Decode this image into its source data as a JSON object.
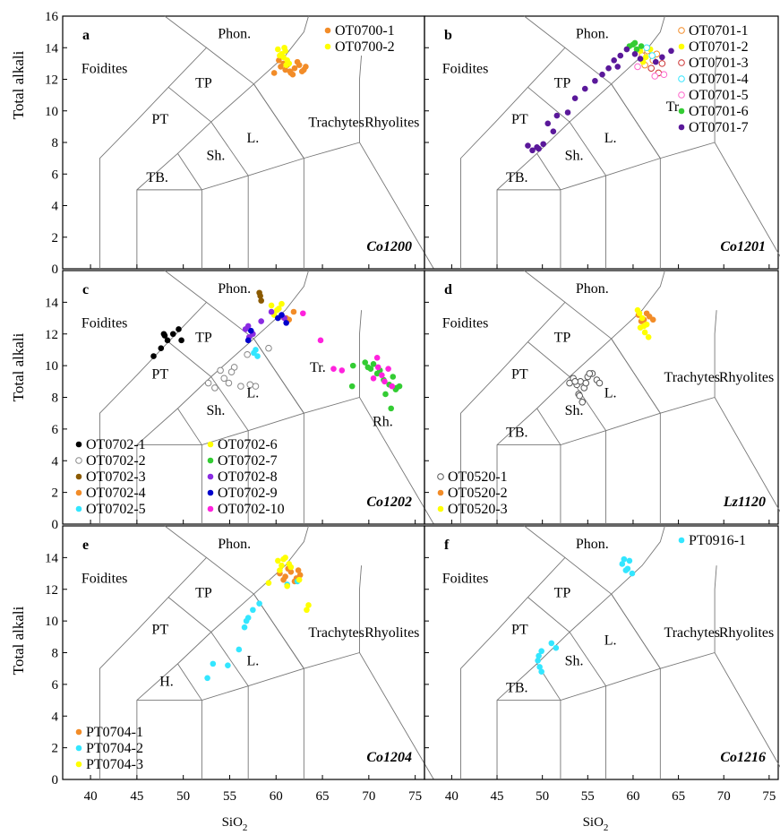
{
  "axis_labels": {
    "y": "Total alkali",
    "x_main": "SiO",
    "x_sub": "2"
  },
  "x_ticks": [
    "40",
    "45",
    "50",
    "55",
    "60",
    "65",
    "70",
    "75"
  ],
  "y_ticks": [
    "0",
    "2",
    "4",
    "6",
    "8",
    "10",
    "12",
    "14",
    "16"
  ],
  "colors": {
    "orange": "#f28c28",
    "yellow": "#ffff00",
    "cyan": "#33e6ff",
    "green": "#33cc33",
    "purple": "#5a189a",
    "darkyellow": "#b38a00",
    "brown": "#8b5a00",
    "blue": "#0000cc",
    "magenta": "#ff22dd",
    "black": "#000000",
    "violet": "#8a2be2",
    "white": "#ffffff"
  },
  "chart_data": [
    {
      "type": "scatter",
      "panel": "a",
      "sample": "Co1200",
      "xlim": [
        37,
        76
      ],
      "ylim": [
        0,
        16
      ],
      "field_labels": [
        {
          "text": "Phon.",
          "x": 55.5,
          "y": 14.6
        },
        {
          "text": "Foidites",
          "x": 41.5,
          "y": 12.4
        },
        {
          "text": "TP",
          "x": 52.2,
          "y": 11.5
        },
        {
          "text": "PT",
          "x": 47.5,
          "y": 9.2
        },
        {
          "text": "Trachytes",
          "x": 66.5,
          "y": 9.0
        },
        {
          "text": "Rhyolites",
          "x": 72.5,
          "y": 9.0
        },
        {
          "text": "L.",
          "x": 57.5,
          "y": 8.0
        },
        {
          "text": "Sh.",
          "x": 53.5,
          "y": 6.9
        },
        {
          "text": "TB.",
          "x": 47.2,
          "y": 5.5
        }
      ],
      "legend": {
        "position": "top-right"
      },
      "series": [
        {
          "name": "OT0700-1",
          "color": "orange",
          "marker": "filled",
          "x": [
            59.8,
            60.5,
            61.0,
            61.5,
            62.0,
            62.5,
            63.0,
            60.8,
            61.8,
            62.3,
            63.2,
            60.3,
            61.2,
            62.8,
            61.6
          ],
          "y": [
            12.4,
            12.8,
            12.6,
            12.5,
            12.7,
            12.9,
            12.6,
            13.0,
            12.3,
            13.1,
            12.8,
            13.2,
            12.9,
            12.5,
            12.4
          ]
        },
        {
          "name": "OT0700-2",
          "color": "yellow",
          "marker": "filled",
          "x": [
            60.2,
            60.6,
            61.0,
            61.2,
            60.8,
            61.4,
            60.4,
            61.1,
            60.9
          ],
          "y": [
            13.9,
            13.6,
            13.8,
            13.2,
            13.4,
            13.0,
            13.5,
            12.9,
            14.0
          ]
        }
      ]
    },
    {
      "type": "scatter",
      "panel": "b",
      "sample": "Co1201",
      "xlim": [
        37,
        76
      ],
      "ylim": [
        0,
        16
      ],
      "field_labels": [
        {
          "text": "Phon.",
          "x": 55.5,
          "y": 14.6
        },
        {
          "text": "Foidites",
          "x": 41.5,
          "y": 12.4
        },
        {
          "text": "TP",
          "x": 52.2,
          "y": 11.5
        },
        {
          "text": "PT",
          "x": 47.5,
          "y": 9.2
        },
        {
          "text": "Tr.",
          "x": 64.5,
          "y": 10.0
        },
        {
          "text": "L.",
          "x": 57.5,
          "y": 8.0
        },
        {
          "text": "Sh.",
          "x": 53.5,
          "y": 6.9
        },
        {
          "text": "TB.",
          "x": 47.2,
          "y": 5.5
        }
      ],
      "legend": {
        "position": "top-right"
      },
      "series": [
        {
          "name": "OT0701-1",
          "color": "orange",
          "marker": "open",
          "x": [
            61.0,
            61.6,
            62.2,
            61.3,
            62.6
          ],
          "y": [
            13.5,
            13.8,
            13.2,
            12.9,
            13.6
          ]
        },
        {
          "name": "OT0701-2",
          "color": "yellow",
          "marker": "filled",
          "x": [
            60.8,
            61.4,
            61.9,
            61.1
          ],
          "y": [
            13.8,
            13.4,
            13.9,
            13.1
          ]
        },
        {
          "name": "OT0701-3",
          "color": "#cc3333",
          "marker": "open",
          "x": [
            62.0,
            62.8,
            63.2
          ],
          "y": [
            12.7,
            12.4,
            13.0
          ]
        },
        {
          "name": "OT0701-4",
          "color": "cyan",
          "marker": "open",
          "x": [
            61.5,
            62.1
          ],
          "y": [
            14.0,
            13.5
          ]
        },
        {
          "name": "OT0701-5",
          "color": "#ff66cc",
          "marker": "open",
          "x": [
            60.5,
            62.4,
            63.4
          ],
          "y": [
            12.8,
            12.2,
            12.3
          ]
        },
        {
          "name": "OT0701-6",
          "color": "green",
          "marker": "filled",
          "x": [
            59.6,
            60.0,
            60.4,
            60.9,
            60.2
          ],
          "y": [
            14.1,
            14.2,
            13.9,
            14.1,
            14.3
          ]
        },
        {
          "name": "OT0701-7",
          "color": "purple",
          "marker": "filled",
          "x": [
            48.4,
            48.9,
            49.4,
            50.1,
            50.6,
            51.2,
            51.6,
            52.8,
            53.6,
            54.7,
            55.8,
            56.6,
            57.3,
            57.9,
            58.6,
            59.3,
            60.2,
            60.8,
            62.5,
            63.2,
            64.2,
            49.6,
            58.3
          ],
          "y": [
            7.8,
            7.5,
            7.7,
            7.9,
            9.2,
            8.7,
            9.7,
            9.9,
            10.8,
            11.4,
            11.9,
            12.3,
            12.7,
            13.2,
            13.5,
            13.9,
            13.6,
            13.3,
            13.1,
            13.4,
            13.8,
            7.6,
            12.8
          ]
        }
      ]
    },
    {
      "type": "scatter",
      "panel": "c",
      "sample": "Co1202",
      "xlim": [
        37,
        76
      ],
      "ylim": [
        0,
        16
      ],
      "field_labels": [
        {
          "text": "Phon.",
          "x": 55.5,
          "y": 14.6
        },
        {
          "text": "Foidites",
          "x": 41.5,
          "y": 12.4
        },
        {
          "text": "TP",
          "x": 52.2,
          "y": 11.5
        },
        {
          "text": "PT",
          "x": 47.5,
          "y": 9.2
        },
        {
          "text": "Tr.",
          "x": 64.5,
          "y": 9.6
        },
        {
          "text": "Rh.",
          "x": 71.5,
          "y": 6.2
        },
        {
          "text": "L.",
          "x": 57.5,
          "y": 8.0
        },
        {
          "text": "Sh.",
          "x": 53.5,
          "y": 6.9
        }
      ],
      "legend": {
        "position": "bottom-left"
      },
      "series": [
        {
          "name": "OT0702-1",
          "color": "black",
          "marker": "filled",
          "x": [
            46.8,
            47.6,
            48.0,
            48.3,
            48.9,
            49.5,
            49.8,
            47.9
          ],
          "y": [
            10.6,
            11.1,
            11.9,
            11.6,
            12.0,
            12.3,
            11.6,
            12.0
          ]
        },
        {
          "name": "OT0702-2",
          "color": "#888888",
          "marker": "open",
          "x": [
            52.7,
            53.4,
            54.0,
            54.9,
            55.5,
            56.2,
            57.2,
            55.2,
            54.4,
            59.2,
            56.9,
            57.8
          ],
          "y": [
            8.9,
            8.6,
            9.7,
            8.9,
            9.9,
            8.7,
            8.8,
            9.6,
            9.2,
            11.1,
            10.7,
            8.7
          ]
        },
        {
          "name": "OT0702-3",
          "color": "brown",
          "marker": "filled",
          "x": [
            58.2,
            58.4,
            58.3
          ],
          "y": [
            14.6,
            14.1,
            14.4
          ]
        },
        {
          "name": "OT0702-4",
          "color": "orange",
          "marker": "filled",
          "x": [
            60.6,
            61.4,
            61.9,
            61.1
          ],
          "y": [
            13.1,
            12.9,
            13.4,
            13.0
          ]
        },
        {
          "name": "OT0702-5",
          "color": "cyan",
          "marker": "filled",
          "x": [
            57.6,
            58.0,
            57.8
          ],
          "y": [
            10.8,
            10.6,
            11.0
          ]
        },
        {
          "name": "OT0702-6",
          "color": "yellow",
          "marker": "filled",
          "x": [
            59.5,
            60.1,
            60.6,
            59.8,
            60.3
          ],
          "y": [
            13.8,
            13.5,
            13.9,
            13.2,
            13.6
          ]
        },
        {
          "name": "OT0702-7",
          "color": "green",
          "marker": "filled",
          "x": [
            69.6,
            70.2,
            70.9,
            71.6,
            72.2,
            72.9,
            73.3,
            70.5,
            71.2,
            72.6,
            73.0,
            69.9,
            71.8,
            72.4,
            68.2,
            68.3
          ],
          "y": [
            10.2,
            9.8,
            9.5,
            9.1,
            8.8,
            8.5,
            8.7,
            10.1,
            9.7,
            9.3,
            8.6,
            9.9,
            8.2,
            7.3,
            8.7,
            10.0
          ]
        },
        {
          "name": "OT0702-8",
          "color": "violet",
          "marker": "filled",
          "x": [
            56.7,
            57.1,
            57.5,
            57.0,
            58.4,
            59.5,
            60.9
          ],
          "y": [
            12.3,
            11.8,
            12.0,
            12.5,
            12.8,
            13.4,
            13.0
          ]
        },
        {
          "name": "OT0702-9",
          "color": "blue",
          "marker": "filled",
          "x": [
            57.0,
            57.3,
            60.6,
            61.1,
            60.2
          ],
          "y": [
            11.6,
            12.2,
            13.2,
            12.7,
            13.0
          ]
        },
        {
          "name": "OT0702-10",
          "color": "magenta",
          "marker": "filled",
          "x": [
            62.9,
            64.8,
            66.2,
            67.1,
            70.9,
            71.4,
            72.1,
            71.7,
            70.5,
            71.0,
            72.5
          ],
          "y": [
            13.3,
            11.6,
            9.8,
            9.7,
            10.5,
            9.4,
            9.8,
            9.0,
            9.2,
            9.9,
            8.7
          ]
        }
      ]
    },
    {
      "type": "scatter",
      "panel": "d",
      "sample": "Lz1120",
      "xlim": [
        37,
        76
      ],
      "ylim": [
        0,
        16
      ],
      "field_labels": [
        {
          "text": "Phon.",
          "x": 55.5,
          "y": 14.6
        },
        {
          "text": "Foidites",
          "x": 41.5,
          "y": 12.4
        },
        {
          "text": "TP",
          "x": 52.2,
          "y": 11.5
        },
        {
          "text": "PT",
          "x": 47.5,
          "y": 9.2
        },
        {
          "text": "Trachytes",
          "x": 66.5,
          "y": 9.0
        },
        {
          "text": "Rhyolites",
          "x": 72.5,
          "y": 9.0
        },
        {
          "text": "L.",
          "x": 57.5,
          "y": 8.0
        },
        {
          "text": "Sh.",
          "x": 53.5,
          "y": 6.9
        },
        {
          "text": "TB.",
          "x": 47.2,
          "y": 5.5
        }
      ],
      "legend": {
        "position": "bottom-left"
      },
      "series": [
        {
          "name": "OT0520-1",
          "color": "#555555",
          "marker": "open",
          "x": [
            53.0,
            53.4,
            53.8,
            54.2,
            54.6,
            55.0,
            55.5,
            56.0,
            56.3,
            54.0,
            54.4,
            53.6,
            54.8,
            55.2,
            54.1
          ],
          "y": [
            8.9,
            9.2,
            8.8,
            9.0,
            8.6,
            9.3,
            9.5,
            9.1,
            8.9,
            8.2,
            7.7,
            9.0,
            8.9,
            9.5,
            8.1
          ]
        },
        {
          "name": "OT0520-2",
          "color": "orange",
          "marker": "filled",
          "x": [
            60.6,
            61.2,
            61.8,
            62.2,
            61.5,
            60.9
          ],
          "y": [
            13.2,
            12.9,
            13.1,
            12.9,
            13.3,
            12.8
          ]
        },
        {
          "name": "OT0520-3",
          "color": "yellow",
          "marker": "filled",
          "x": [
            60.5,
            61.0,
            61.5,
            60.8,
            61.3,
            61.7,
            61.2,
            60.7
          ],
          "y": [
            13.5,
            13.0,
            12.6,
            12.4,
            12.1,
            11.8,
            12.5,
            13.3
          ]
        }
      ]
    },
    {
      "type": "scatter",
      "panel": "e",
      "sample": "Co1204",
      "xlim": [
        37,
        76
      ],
      "ylim": [
        0,
        16
      ],
      "field_labels": [
        {
          "text": "Phon.",
          "x": 55.5,
          "y": 14.6
        },
        {
          "text": "Foidites",
          "x": 41.5,
          "y": 12.4
        },
        {
          "text": "TP",
          "x": 52.2,
          "y": 11.5
        },
        {
          "text": "PT",
          "x": 47.5,
          "y": 9.2
        },
        {
          "text": "Trachytes",
          "x": 66.5,
          "y": 9.0
        },
        {
          "text": "Rhyolites",
          "x": 72.5,
          "y": 9.0
        },
        {
          "text": "L.",
          "x": 57.5,
          "y": 7.2
        },
        {
          "text": "H.",
          "x": 48.2,
          "y": 5.9
        }
      ],
      "legend": {
        "position": "bottom-left"
      },
      "series": [
        {
          "name": "PT0704-1",
          "color": "orange",
          "marker": "filled",
          "x": [
            60.4,
            61.0,
            61.6,
            62.2,
            62.6,
            61.3,
            62.0,
            60.8,
            62.4
          ],
          "y": [
            13.0,
            12.8,
            13.1,
            12.7,
            12.9,
            13.3,
            12.5,
            12.6,
            13.2
          ]
        },
        {
          "name": "PT0704-2",
          "color": "cyan",
          "marker": "filled",
          "x": [
            52.6,
            53.2,
            54.8,
            56.0,
            56.6,
            57.0,
            57.5,
            56.8,
            58.2,
            61.2,
            62.3
          ],
          "y": [
            6.4,
            7.3,
            7.2,
            8.2,
            9.6,
            10.2,
            10.7,
            10.0,
            11.1,
            12.3,
            12.5
          ]
        },
        {
          "name": "PT0704-3",
          "color": "yellow",
          "marker": "filled",
          "x": [
            59.2,
            60.2,
            60.6,
            61.0,
            61.4,
            60.4,
            60.8,
            61.6,
            63.5,
            62.5,
            61.2,
            63.3
          ],
          "y": [
            12.4,
            13.8,
            13.5,
            14.0,
            13.6,
            13.2,
            13.9,
            13.4,
            11.0,
            12.6,
            12.2,
            10.7
          ]
        }
      ]
    },
    {
      "type": "scatter",
      "panel": "f",
      "sample": "Co1216",
      "xlim": [
        37,
        76
      ],
      "ylim": [
        0,
        16
      ],
      "field_labels": [
        {
          "text": "Phon.",
          "x": 55.5,
          "y": 14.6
        },
        {
          "text": "Foidites",
          "x": 41.5,
          "y": 12.4
        },
        {
          "text": "TP",
          "x": 52.2,
          "y": 11.5
        },
        {
          "text": "PT",
          "x": 47.5,
          "y": 9.2
        },
        {
          "text": "Trachytes",
          "x": 66.5,
          "y": 9.0
        },
        {
          "text": "Rhyolites",
          "x": 72.5,
          "y": 9.0
        },
        {
          "text": "L.",
          "x": 57.5,
          "y": 8.5
        },
        {
          "text": "Sh.",
          "x": 53.5,
          "y": 7.2
        },
        {
          "text": "TB.",
          "x": 47.2,
          "y": 5.5
        }
      ],
      "legend": {
        "position": "top-right"
      },
      "series": [
        {
          "name": "PT0916-1",
          "color": "cyan",
          "marker": "filled",
          "x": [
            58.8,
            59.0,
            59.4,
            59.9,
            59.2,
            59.6,
            49.6,
            49.9,
            51.0,
            51.5,
            49.7,
            49.9,
            49.5
          ],
          "y": [
            13.6,
            13.9,
            13.3,
            13.0,
            13.2,
            13.8,
            7.8,
            8.1,
            8.6,
            8.3,
            7.1,
            6.8,
            7.5
          ]
        }
      ]
    }
  ]
}
